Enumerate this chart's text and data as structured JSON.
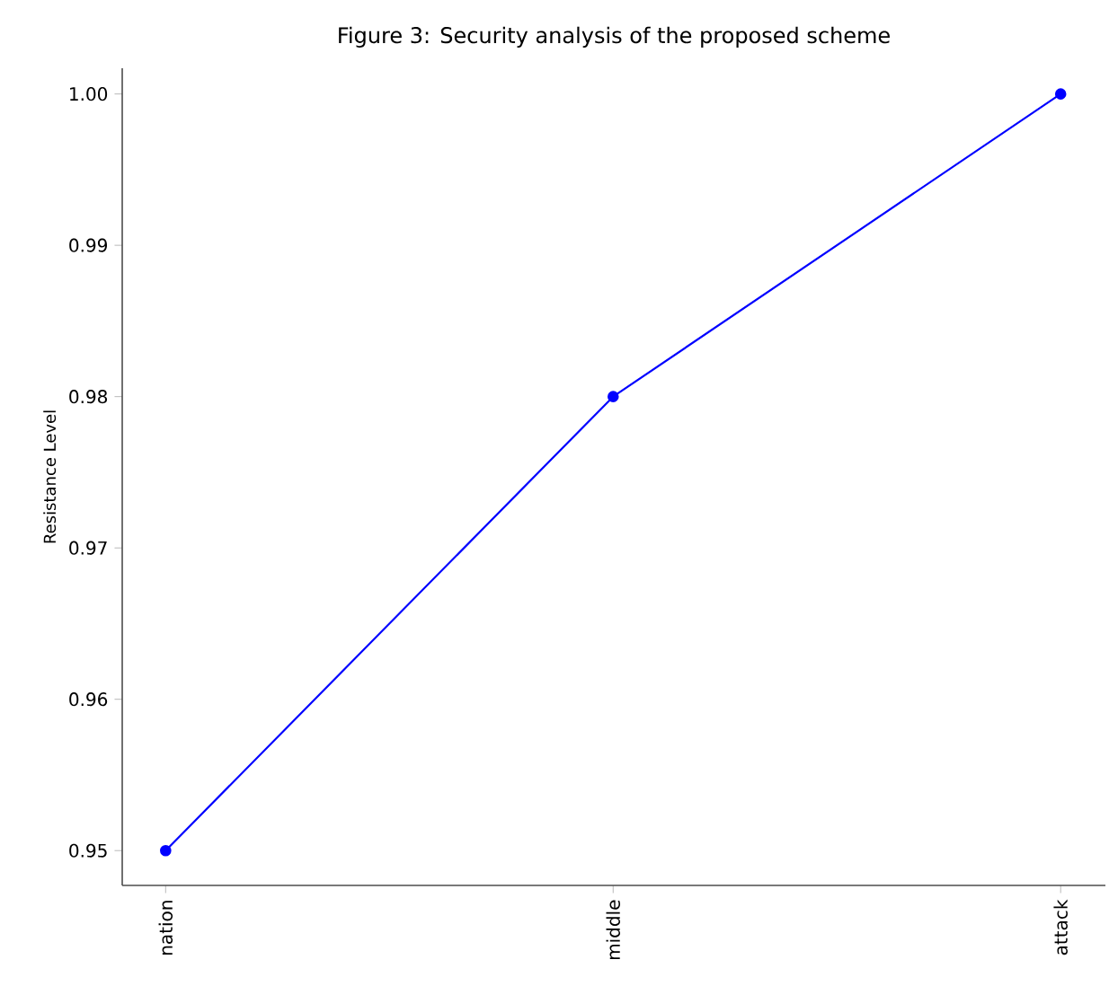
{
  "chart_data": {
    "type": "line",
    "title": "Figure 3: Security analysis of the proposed scheme",
    "ylabel": "Resistance Level",
    "categories": [
      "nation",
      "middle",
      "attack"
    ],
    "series": [
      {
        "color": "#0000ff",
        "values": [
          0.95,
          0.98,
          1.0
        ]
      }
    ],
    "ylim": [
      0.9477,
      1.0017
    ],
    "yticks": [
      {
        "value": 0.95,
        "label": "0.95"
      },
      {
        "value": 0.96,
        "label": "0.96"
      },
      {
        "value": 0.97,
        "label": "0.97"
      },
      {
        "value": 0.98,
        "label": "0.98"
      },
      {
        "value": 0.99,
        "label": "0.99"
      },
      {
        "value": 1.0,
        "label": "1.00"
      }
    ],
    "marker": "circle",
    "line_style": "solid"
  }
}
